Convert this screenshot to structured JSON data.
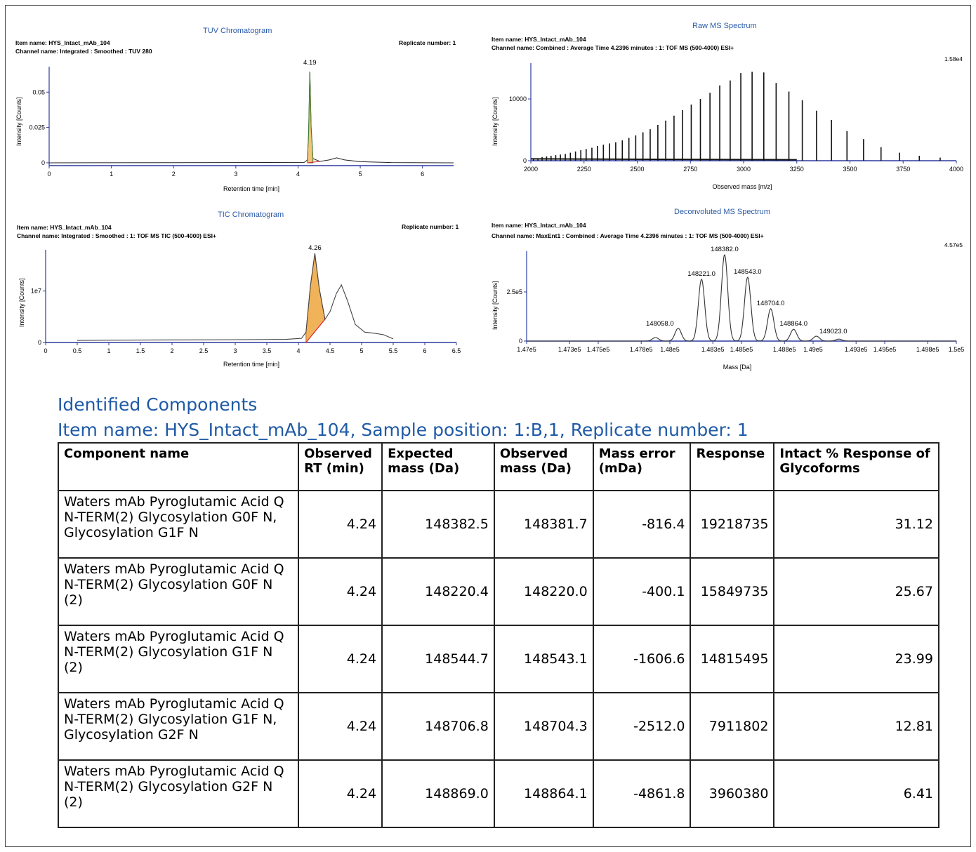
{
  "chart_data": [
    {
      "type": "line",
      "title": "TUV Chromatogram",
      "item_name": "Item name: HYS_Intact_mAb_104",
      "channel_name": "Channel name: Integrated : Smoothed : TUV 280",
      "replicate": "Replicate number: 1",
      "xlabel": "Retention time [min]",
      "ylabel": "Intensity [Counts]",
      "xlim": [
        0,
        6.5
      ],
      "ylim": [
        -0.002,
        0.068
      ],
      "x_ticks": [
        "0",
        "1",
        "2",
        "3",
        "4",
        "5",
        "6"
      ],
      "y_ticks": [
        "0",
        "0.025",
        "0.05"
      ],
      "peak_label": "4.19",
      "peak_label_x": 4.19,
      "series": [
        {
          "points": [
            [
              0,
              0
            ],
            [
              4.1,
              0.0003
            ],
            [
              4.15,
              0.002
            ],
            [
              4.17,
              0.02
            ],
            [
              4.19,
              0.0645
            ],
            [
              4.21,
              0.025
            ],
            [
              4.24,
              0.003
            ],
            [
              4.35,
              0.001
            ],
            [
              4.5,
              0.002
            ],
            [
              4.62,
              0.0035
            ],
            [
              4.75,
              0.002
            ],
            [
              5.0,
              0.0008
            ],
            [
              5.5,
              0.0002
            ],
            [
              6.5,
              0
            ]
          ]
        }
      ]
    },
    {
      "type": "bar",
      "title": "Raw MS Spectrum",
      "item_name": "Item name: HYS_Intact_mAb_104",
      "channel_name": "Channel name: Combined : Average Time 4.2396 minutes : 1: TOF MS (500-4000) ESI+",
      "scale": "1.58e4",
      "xlabel": "Observed mass [m/z]",
      "ylabel": "Intensity [Counts]",
      "xlim": [
        2000,
        4000
      ],
      "ylim": [
        0,
        15800
      ],
      "x_ticks": [
        "2000",
        "2250",
        "2500",
        "2750",
        "3000",
        "3250",
        "3500",
        "3750",
        "4000"
      ],
      "y_ticks": [
        "0",
        "10000"
      ],
      "x": [
        2012,
        2033,
        2053,
        2074,
        2095,
        2117,
        2139,
        2162,
        2186,
        2210,
        2235,
        2260,
        2287,
        2313,
        2341,
        2370,
        2399,
        2430,
        2461,
        2493,
        2527,
        2561,
        2597,
        2634,
        2673,
        2713,
        2754,
        2797,
        2842,
        2888,
        2937,
        2987,
        3040,
        3095,
        3153,
        3213,
        3276,
        3343,
        3413,
        3486,
        3564,
        3646,
        3733,
        3826,
        3924
      ],
      "values": [
        300,
        400,
        600,
        700,
        800,
        900,
        1000,
        1100,
        1300,
        1500,
        1700,
        1900,
        2100,
        2400,
        2600,
        2800,
        3000,
        3300,
        3700,
        4100,
        4600,
        5100,
        5800,
        6500,
        7300,
        8200,
        9100,
        10000,
        11000,
        12200,
        13000,
        14200,
        14400,
        14300,
        12600,
        11200,
        9800,
        8100,
        6600,
        4800,
        3500,
        2200,
        1300,
        800,
        500
      ]
    },
    {
      "type": "area",
      "title": "TIC Chromatogram",
      "item_name": "Item name: HYS_Intact_mAb_104",
      "channel_name": "Channel name: Integrated : Smoothed : 1: TOF MS TIC (500-4000) ESI+",
      "replicate": "Replicate number: 1",
      "xlabel": "Retention time [min]",
      "ylabel": "Intensity [Counts]",
      "xlim": [
        0,
        6.5
      ],
      "ylim": [
        0,
        18000000
      ],
      "x_ticks": [
        "0",
        "0.5",
        "1",
        "1.5",
        "2",
        "2.5",
        "3",
        "3.5",
        "4",
        "4.5",
        "5",
        "5.5",
        "6",
        "6.5"
      ],
      "y_ticks": [
        "0",
        "1e7"
      ],
      "peak_label": "4.26",
      "peak_label_x": 4.26,
      "integration_range": [
        4.12,
        4.42
      ],
      "series": [
        {
          "points": [
            [
              0.5,
              400000
            ],
            [
              1,
              450000
            ],
            [
              2,
              500000
            ],
            [
              3,
              550000
            ],
            [
              3.8,
              600000
            ],
            [
              4.05,
              800000
            ],
            [
              4.12,
              2000000
            ],
            [
              4.19,
              11000000
            ],
            [
              4.26,
              17300000
            ],
            [
              4.33,
              10500000
            ],
            [
              4.42,
              4500000
            ],
            [
              4.5,
              6000000
            ],
            [
              4.6,
              9500000
            ],
            [
              4.68,
              11200000
            ],
            [
              4.78,
              8000000
            ],
            [
              4.9,
              3500000
            ],
            [
              5.05,
              2000000
            ],
            [
              5.2,
              1800000
            ],
            [
              5.35,
              1500000
            ],
            [
              5.5,
              700000
            ]
          ]
        }
      ]
    },
    {
      "type": "line",
      "title": "Deconvoluted MS Spectrum",
      "item_name": "Item name: HYS_Intact_mAb_104",
      "channel_name": "Channel name: MaxEnt1 : Combined : Average Time 4.2396 minutes : 1: TOF MS (500-4000) ESI+",
      "scale": "4.57e5",
      "xlabel": "Mass [Da]",
      "ylabel": "Intensity [Counts]",
      "xlim": [
        147000,
        150000
      ],
      "ylim": [
        0,
        457000
      ],
      "x_ticks": [
        "1.47e5",
        "1.473e5",
        "1.475e5",
        "1.478e5",
        "1.48e5",
        "1.483e5",
        "1.485e5",
        "1.488e5",
        "1.49e5",
        "1.493e5",
        "1.495e5",
        "1.498e5",
        "1.5e5"
      ],
      "y_ticks": [
        "0",
        "2.5e5"
      ],
      "peaks": [
        {
          "mass": 148058.0,
          "intensity": 65000,
          "label": "148058.0"
        },
        {
          "mass": 148221.0,
          "intensity": 315000,
          "label": "148221.0"
        },
        {
          "mass": 148382.0,
          "intensity": 440000,
          "label": "148382.0"
        },
        {
          "mass": 148543.0,
          "intensity": 325000,
          "label": "148543.0"
        },
        {
          "mass": 148704.0,
          "intensity": 165000,
          "label": "148704.0"
        },
        {
          "mass": 148864.0,
          "intensity": 60000,
          "label": "148864.0"
        },
        {
          "mass": 149023.0,
          "intensity": 25000,
          "label": "149023.0"
        },
        {
          "mass": 147900.0,
          "intensity": 18000,
          "label": ""
        },
        {
          "mass": 149180.0,
          "intensity": 10000,
          "label": ""
        }
      ]
    }
  ],
  "components": {
    "heading": "Identified Components",
    "subheading": "Item name: HYS_Intact_mAb_104, Sample position: 1:B,1, Replicate number: 1",
    "columns": [
      "Component name",
      "Observed RT (min)",
      "Expected mass (Da)",
      "Observed mass (Da)",
      "Mass error (mDa)",
      "Response",
      "Intact % Response of Glycoforms"
    ],
    "rows": [
      [
        "Waters mAb Pyroglutamic Acid Q N-TERM(2) Glycosylation G0F N, Glycosylation G1F N",
        "4.24",
        "148382.5",
        "148381.7",
        "-816.4",
        "19218735",
        "31.12"
      ],
      [
        "Waters mAb Pyroglutamic Acid Q N-TERM(2) Glycosylation G0F N (2)",
        "4.24",
        "148220.4",
        "148220.0",
        "-400.1",
        "15849735",
        "25.67"
      ],
      [
        "Waters mAb Pyroglutamic Acid Q N-TERM(2) Glycosylation G1F N (2)",
        "4.24",
        "148544.7",
        "148543.1",
        "-1606.6",
        "14815495",
        "23.99"
      ],
      [
        "Waters mAb Pyroglutamic Acid Q N-TERM(2) Glycosylation G1F N, Glycosylation G2F N",
        "4.24",
        "148706.8",
        "148704.3",
        "-2512.0",
        "7911802",
        "12.81"
      ],
      [
        "Waters mAb Pyroglutamic Acid Q N-TERM(2) Glycosylation G2F N (2)",
        "4.24",
        "148869.0",
        "148864.1",
        "-4861.8",
        "3960380",
        "6.41"
      ]
    ]
  }
}
